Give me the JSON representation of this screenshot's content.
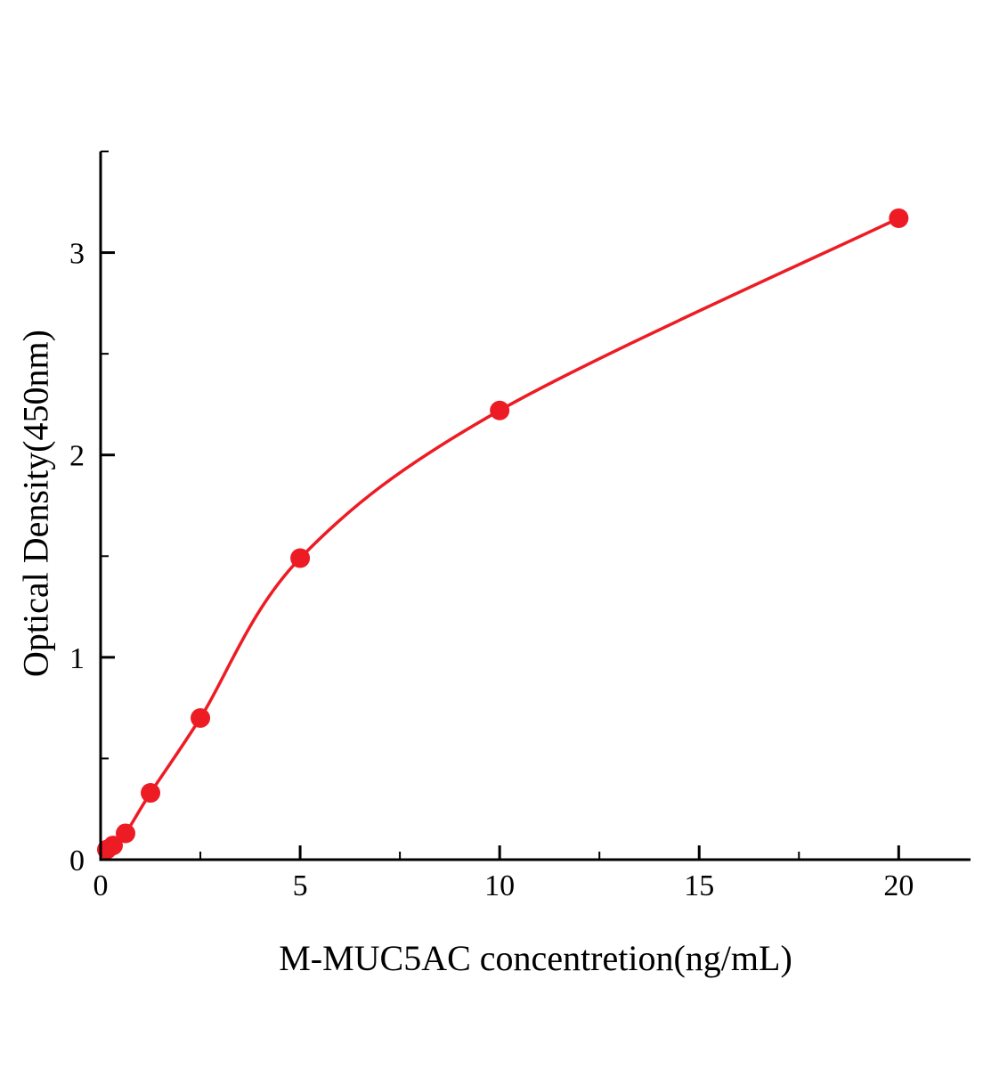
{
  "figure": {
    "background": "#ffffff"
  },
  "chart_data": {
    "type": "scatter",
    "title": "",
    "xlabel": "M-MUC5AC concentretion(ng/mL)",
    "ylabel": "Optical Density(450nm)",
    "x": [
      0.156,
      0.3125,
      0.625,
      1.25,
      2.5,
      5,
      10,
      20
    ],
    "y": [
      0.05,
      0.07,
      0.13,
      0.33,
      0.7,
      1.49,
      2.22,
      3.17
    ],
    "fit_curve": true,
    "xlim": [
      0,
      21.8
    ],
    "ylim": [
      0,
      3.5
    ],
    "x_major_ticks": [
      0,
      5,
      10,
      15,
      20
    ],
    "y_major_ticks": [
      0,
      1,
      2,
      3
    ],
    "x_minor_step": 2.5,
    "y_minor_step": 0.5,
    "point_color": "#ed1c24",
    "line_color": "#ed1c24",
    "axis_color": "#000000",
    "tick_label_color": "#000000",
    "grid": false,
    "legend": "none"
  }
}
